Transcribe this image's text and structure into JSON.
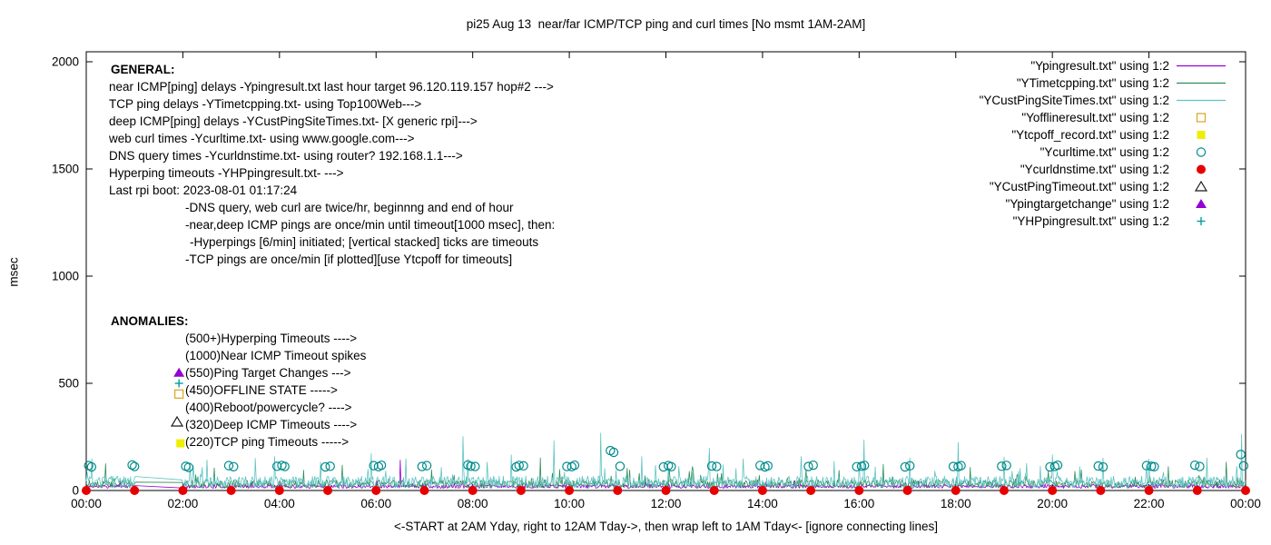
{
  "chart_data": {
    "type": "line",
    "title": "pi25 Aug 13  near/far ICMP/TCP ping and curl times [No msmt 1AM-2AM]",
    "xlabel": "<-START at 2AM Yday, right to 12AM Tday->, then wrap left to 1AM Tday<- [ignore connecting lines]",
    "ylabel": "msec",
    "ylim": [
      0,
      2000
    ],
    "xlim_hours": [
      0,
      24
    ],
    "grid": false,
    "legend_position": "top-right",
    "no_measurement_window_hours": [
      1,
      2
    ],
    "y_ticks": [
      0,
      500,
      1000,
      1500,
      2000
    ],
    "x_ticks": [
      "00:00",
      "02:00",
      "04:00",
      "06:00",
      "08:00",
      "10:00",
      "12:00",
      "14:00",
      "16:00",
      "18:00",
      "20:00",
      "22:00",
      "00:00"
    ],
    "series": [
      {
        "name": "\"Ypingresult.txt\" using 1:2",
        "kind": "noise-line",
        "color": "#9400d3",
        "baseline": 10,
        "amplitude": 18,
        "burst_p": 0.03,
        "seed": 11,
        "spikes": [
          [
            6.5,
            142
          ]
        ]
      },
      {
        "name": "\"YTimetcpping.txt\" using 1:2",
        "kind": "noise-line",
        "color": "#2e8b57",
        "baseline": 12,
        "amplitude": 38,
        "burst_p": 0.04,
        "seed": 22,
        "spikes": [
          [
            0.4,
            125
          ],
          [
            2.65,
            105
          ],
          [
            4.5,
            95
          ],
          [
            5.3,
            118
          ],
          [
            7.15,
            96
          ],
          [
            9.4,
            152
          ],
          [
            11.2,
            104
          ],
          [
            12.55,
            112
          ],
          [
            14.9,
            98
          ],
          [
            16.5,
            122
          ],
          [
            18.3,
            108
          ],
          [
            20.6,
            96
          ],
          [
            22.4,
            112
          ],
          [
            23.6,
            132
          ]
        ]
      },
      {
        "name": "\"YCustPingSiteTimes.txt\" using 1:2",
        "kind": "noise-line",
        "color": "#5fc3c3",
        "baseline": 12,
        "amplitude": 55,
        "burst_p": 0.04,
        "seed": 33,
        "spikes": [
          [
            0.12,
            148
          ],
          [
            2.5,
            142
          ],
          [
            3.9,
            158
          ],
          [
            4.85,
            132
          ],
          [
            5.9,
            172
          ],
          [
            6.62,
            148
          ],
          [
            7.8,
            252
          ],
          [
            8.8,
            166
          ],
          [
            9.68,
            232
          ],
          [
            10.65,
            268
          ],
          [
            11.5,
            158
          ],
          [
            12.9,
            196
          ],
          [
            13.6,
            148
          ],
          [
            14.8,
            158
          ],
          [
            16.1,
            236
          ],
          [
            17.05,
            152
          ],
          [
            18.05,
            224
          ],
          [
            19.0,
            156
          ],
          [
            20.0,
            166
          ],
          [
            21.05,
            152
          ],
          [
            22.0,
            146
          ],
          [
            23.2,
            152
          ],
          [
            23.92,
            262
          ]
        ]
      },
      {
        "name": "\"Yofflineresult.txt\" using 1:2",
        "kind": "points",
        "marker": "square-open",
        "color": "#daa520",
        "points": [
          [
            1.92,
            450
          ]
        ]
      },
      {
        "name": "\"Ytcpoff_record.txt\" using 1:2",
        "kind": "points",
        "marker": "square-filled",
        "color": "#eeee00",
        "points": [
          [
            1.95,
            220
          ]
        ]
      },
      {
        "name": "\"Ycurltime.txt\" using 1:2",
        "kind": "points",
        "marker": "circle-open",
        "color": "#008b8b",
        "points": [
          [
            0.05,
            116
          ],
          [
            0.11,
            110
          ],
          [
            0.95,
            119
          ],
          [
            1.0,
            112
          ],
          [
            2.06,
            113
          ],
          [
            2.12,
            108
          ],
          [
            2.95,
            116
          ],
          [
            3.05,
            111
          ],
          [
            3.95,
            113
          ],
          [
            4.05,
            117
          ],
          [
            4.11,
            112
          ],
          [
            4.95,
            110
          ],
          [
            5.05,
            113
          ],
          [
            5.95,
            116
          ],
          [
            6.05,
            111
          ],
          [
            6.11,
            118
          ],
          [
            6.95,
            112
          ],
          [
            7.05,
            116
          ],
          [
            7.9,
            119
          ],
          [
            7.96,
            113
          ],
          [
            8.05,
            112
          ],
          [
            8.9,
            110
          ],
          [
            8.96,
            117
          ],
          [
            9.05,
            115
          ],
          [
            9.95,
            112
          ],
          [
            10.05,
            111
          ],
          [
            10.11,
            118
          ],
          [
            10.85,
            186
          ],
          [
            10.92,
            178
          ],
          [
            11.05,
            113
          ],
          [
            11.95,
            110
          ],
          [
            12.05,
            116
          ],
          [
            12.11,
            111
          ],
          [
            12.95,
            114
          ],
          [
            13.05,
            112
          ],
          [
            13.95,
            117
          ],
          [
            14.05,
            110
          ],
          [
            14.11,
            115
          ],
          [
            14.95,
            112
          ],
          [
            15.05,
            118
          ],
          [
            15.95,
            111
          ],
          [
            16.05,
            113
          ],
          [
            16.11,
            117
          ],
          [
            16.95,
            110
          ],
          [
            17.05,
            115
          ],
          [
            17.95,
            112
          ],
          [
            18.05,
            111
          ],
          [
            18.11,
            116
          ],
          [
            18.95,
            113
          ],
          [
            19.05,
            117
          ],
          [
            19.95,
            110
          ],
          [
            20.05,
            112
          ],
          [
            20.11,
            118
          ],
          [
            20.95,
            114
          ],
          [
            21.05,
            110
          ],
          [
            21.95,
            116
          ],
          [
            22.05,
            113
          ],
          [
            22.11,
            111
          ],
          [
            22.95,
            118
          ],
          [
            23.05,
            112
          ],
          [
            23.9,
            168
          ],
          [
            23.96,
            115
          ]
        ]
      },
      {
        "name": "\"Ycurldnstime.txt\" using 1:2",
        "kind": "points",
        "marker": "circle-filled",
        "color": "#e60000",
        "points": [
          [
            0,
            0
          ],
          [
            1,
            0
          ],
          [
            2,
            0
          ],
          [
            3,
            0
          ],
          [
            4,
            0
          ],
          [
            5,
            0
          ],
          [
            6,
            0
          ],
          [
            7,
            0
          ],
          [
            8,
            0
          ],
          [
            9,
            0
          ],
          [
            10,
            0
          ],
          [
            11,
            0
          ],
          [
            12,
            0
          ],
          [
            13,
            0
          ],
          [
            14,
            0
          ],
          [
            15,
            0
          ],
          [
            16,
            0
          ],
          [
            17,
            0
          ],
          [
            18,
            0
          ],
          [
            19,
            0
          ],
          [
            20,
            0
          ],
          [
            21,
            0
          ],
          [
            22,
            0
          ],
          [
            23,
            0
          ],
          [
            24,
            0
          ]
        ]
      },
      {
        "name": "\"YCustPingTimeout.txt\" using 1:2",
        "kind": "points",
        "marker": "triangle-open",
        "color": "#1a1a1a",
        "points": [
          [
            1.88,
            320
          ]
        ]
      },
      {
        "name": "\"Ypingtargetchange\" using 1:2",
        "kind": "points",
        "marker": "triangle-filled",
        "color": "#9400d3",
        "points": [
          [
            1.92,
            550
          ]
        ]
      },
      {
        "name": "\"YHPpingresult.txt\" using 1:2",
        "kind": "points",
        "marker": "plus",
        "color": "#009e9e",
        "points": [
          [
            1.92,
            500
          ]
        ]
      }
    ],
    "annotations": {
      "general": {
        "header": "GENERAL:",
        "lines": [
          "near ICMP[ping] delays -Ypingresult.txt last hour target 96.120.119.157 hop#2 --->",
          "TCP ping delays -YTimetcpping.txt- using Top100Web--->",
          "deep ICMP[ping] delays -YCustPingSiteTimes.txt- [X generic rpi]--->",
          "web curl times -Ycurltime.txt- using www.google.com--->",
          "DNS query times -Ycurldnstime.txt- using router? 192.168.1.1--->",
          "Hyperping timeouts -YHPpingresult.txt- --->",
          "Last rpi boot: 2023-08-01 01:17:24"
        ],
        "sub_lines": [
          "-DNS query, web curl are twice/hr, beginnng and end of hour",
          "-near,deep ICMP pings are once/min until timeout[1000 msec], then:",
          "-Hyperpings [6/min] initiated; [vertical stacked] ticks are timeouts",
          "-TCP pings are once/min [if plotted][use Ytcpoff for timeouts]"
        ]
      },
      "anomalies": {
        "header": "ANOMALIES:",
        "lines": [
          "(500+)Hyperping Timeouts ---->",
          "(1000)Near ICMP Timeout spikes",
          "(550)Ping Target Changes --->",
          "(450)OFFLINE STATE ----->",
          "(400)Reboot/powercycle? ---->",
          "(320)Deep ICMP Timeouts ---->",
          "(220)TCP ping Timeouts ----->"
        ]
      }
    }
  }
}
